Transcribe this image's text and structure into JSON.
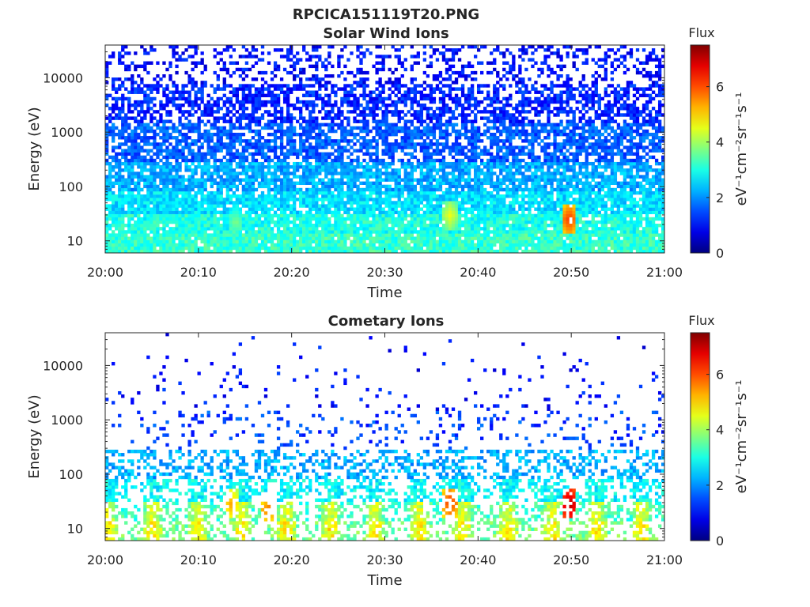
{
  "figure": {
    "title": "RPCICA151119T20.PNG"
  },
  "chart_data": [
    {
      "type": "heatmap",
      "title": "Solar Wind Ions",
      "xlabel": "Time",
      "ylabel": "Energy (eV)",
      "x_range": [
        "20:00",
        "21:00"
      ],
      "x_ticks": [
        "20:00",
        "20:10",
        "20:20",
        "20:30",
        "20:40",
        "20:50",
        "21:00"
      ],
      "y_scale": "log",
      "y_range": [
        6,
        40000
      ],
      "y_ticks": [
        "10",
        "100",
        "1000",
        "10000"
      ],
      "y_tick_values": [
        10,
        100,
        1000,
        10000
      ],
      "colorbar": {
        "title": "Flux",
        "label": "eV⁻¹cm⁻²sr⁻¹s⁻¹",
        "range": [
          0,
          7.5
        ],
        "ticks": [
          "0",
          "2",
          "4",
          "6"
        ],
        "tick_values": [
          0,
          2,
          4,
          6
        ],
        "colormap": "jet"
      },
      "profile": {
        "band_levels": [
          {
            "energy_max": 13,
            "flux": 3.2
          },
          {
            "energy_max": 30,
            "flux": 3.0
          },
          {
            "energy_max": 80,
            "flux": 2.6
          },
          {
            "energy_max": 300,
            "flux": 2.2
          },
          {
            "energy_max": 1500,
            "flux": 1.6
          },
          {
            "energy_max": 8000,
            "flux": 1.2
          },
          {
            "energy_max": 40000,
            "flux": 1.0
          }
        ],
        "fill_density": [
          0.95,
          0.92,
          0.88,
          0.82,
          0.72,
          0.6,
          0.3
        ],
        "peaks": [
          {
            "time_min": 37,
            "energy": 30,
            "flux": 4.6
          },
          {
            "time_min": 49.8,
            "energy": 25,
            "flux": 6.2
          },
          {
            "time_min": 14,
            "energy": 22,
            "flux": 3.8
          }
        ]
      }
    },
    {
      "type": "heatmap",
      "title": "Cometary Ions",
      "xlabel": "Time",
      "ylabel": "Energy (eV)",
      "x_range": [
        "20:00",
        "21:00"
      ],
      "x_ticks": [
        "20:00",
        "20:10",
        "20:20",
        "20:30",
        "20:40",
        "20:50",
        "21:00"
      ],
      "y_scale": "log",
      "y_range": [
        6,
        40000
      ],
      "y_ticks": [
        "10",
        "100",
        "1000",
        "10000"
      ],
      "y_tick_values": [
        10,
        100,
        1000,
        10000
      ],
      "colorbar": {
        "title": "Flux",
        "label": "eV⁻¹cm⁻²sr⁻¹s⁻¹",
        "range": [
          0,
          7.5
        ],
        "ticks": [
          "0",
          "2",
          "4",
          "6"
        ],
        "tick_values": [
          0,
          2,
          4,
          6
        ],
        "colormap": "jet"
      },
      "profile": {
        "band_levels": [
          {
            "energy_max": 13,
            "flux": 4.2
          },
          {
            "energy_max": 30,
            "flux": 3.8
          },
          {
            "energy_max": 80,
            "flux": 2.8
          },
          {
            "energy_max": 300,
            "flux": 2.2
          },
          {
            "energy_max": 1500,
            "flux": 1.4
          },
          {
            "energy_max": 8000,
            "flux": 1.1
          },
          {
            "energy_max": 40000,
            "flux": 1.0
          }
        ],
        "fill_density": [
          0.55,
          0.6,
          0.55,
          0.4,
          0.12,
          0.05,
          0.02
        ],
        "peaks": [
          {
            "time_min": 37,
            "energy": 30,
            "flux": 6.2
          },
          {
            "time_min": 49.8,
            "energy": 28,
            "flux": 7.2
          },
          {
            "time_min": 17.5,
            "energy": 22,
            "flux": 5.8
          },
          {
            "time_min": 13.5,
            "energy": 28,
            "flux": 5.4
          }
        ]
      }
    }
  ]
}
